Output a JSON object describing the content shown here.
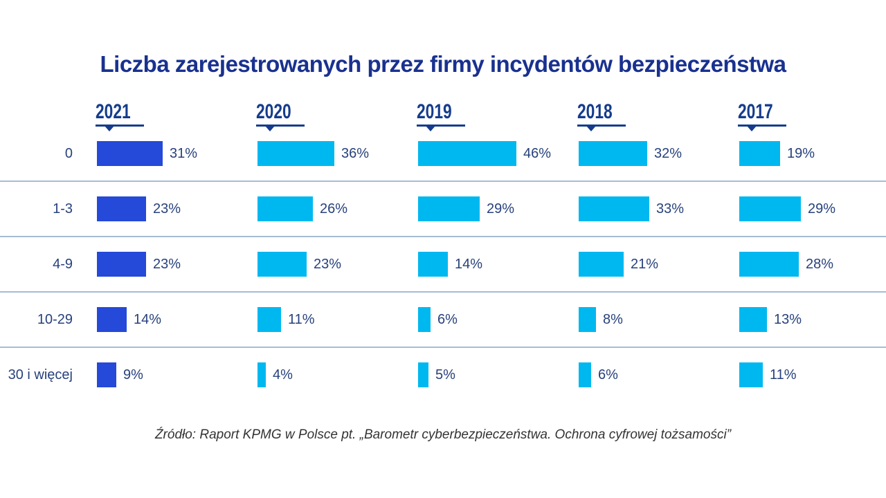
{
  "title": "Liczba zarejestrowanych przez firmy incydentów bezpieczeństwa",
  "source": "Źródło: Raport KPMG w Polsce pt. „Barometr cyberbezpieczeństwa. Ochrona cyfrowej tożsamości”",
  "colors": {
    "title_navy": "#19318f",
    "label_navy": "#27417c",
    "year_navy": "#153c8c",
    "divider": "#a6bcd2",
    "source_text": "#333333",
    "bar_2021": "#2549d8",
    "bar_default": "#00b8f0",
    "background": "#ffffff"
  },
  "chart_data": {
    "type": "bar",
    "orientation": "horizontal",
    "unit": "%",
    "value_labels": true,
    "categories": [
      "0",
      "1-3",
      "4-9",
      "10-29",
      "30 i więcej"
    ],
    "series": [
      {
        "name": "2021",
        "color": "#2549d8",
        "values": [
          31,
          23,
          23,
          14,
          9
        ]
      },
      {
        "name": "2020",
        "color": "#00b8f0",
        "values": [
          36,
          26,
          23,
          11,
          4
        ]
      },
      {
        "name": "2019",
        "color": "#00b8f0",
        "values": [
          46,
          29,
          14,
          6,
          5
        ]
      },
      {
        "name": "2018",
        "color": "#00b8f0",
        "values": [
          32,
          33,
          21,
          8,
          6
        ]
      },
      {
        "name": "2017",
        "color": "#00b8f0",
        "values": [
          19,
          29,
          28,
          13,
          11
        ]
      }
    ],
    "x_max": 46,
    "grid": "row-dividers",
    "legend": "column-headers"
  }
}
